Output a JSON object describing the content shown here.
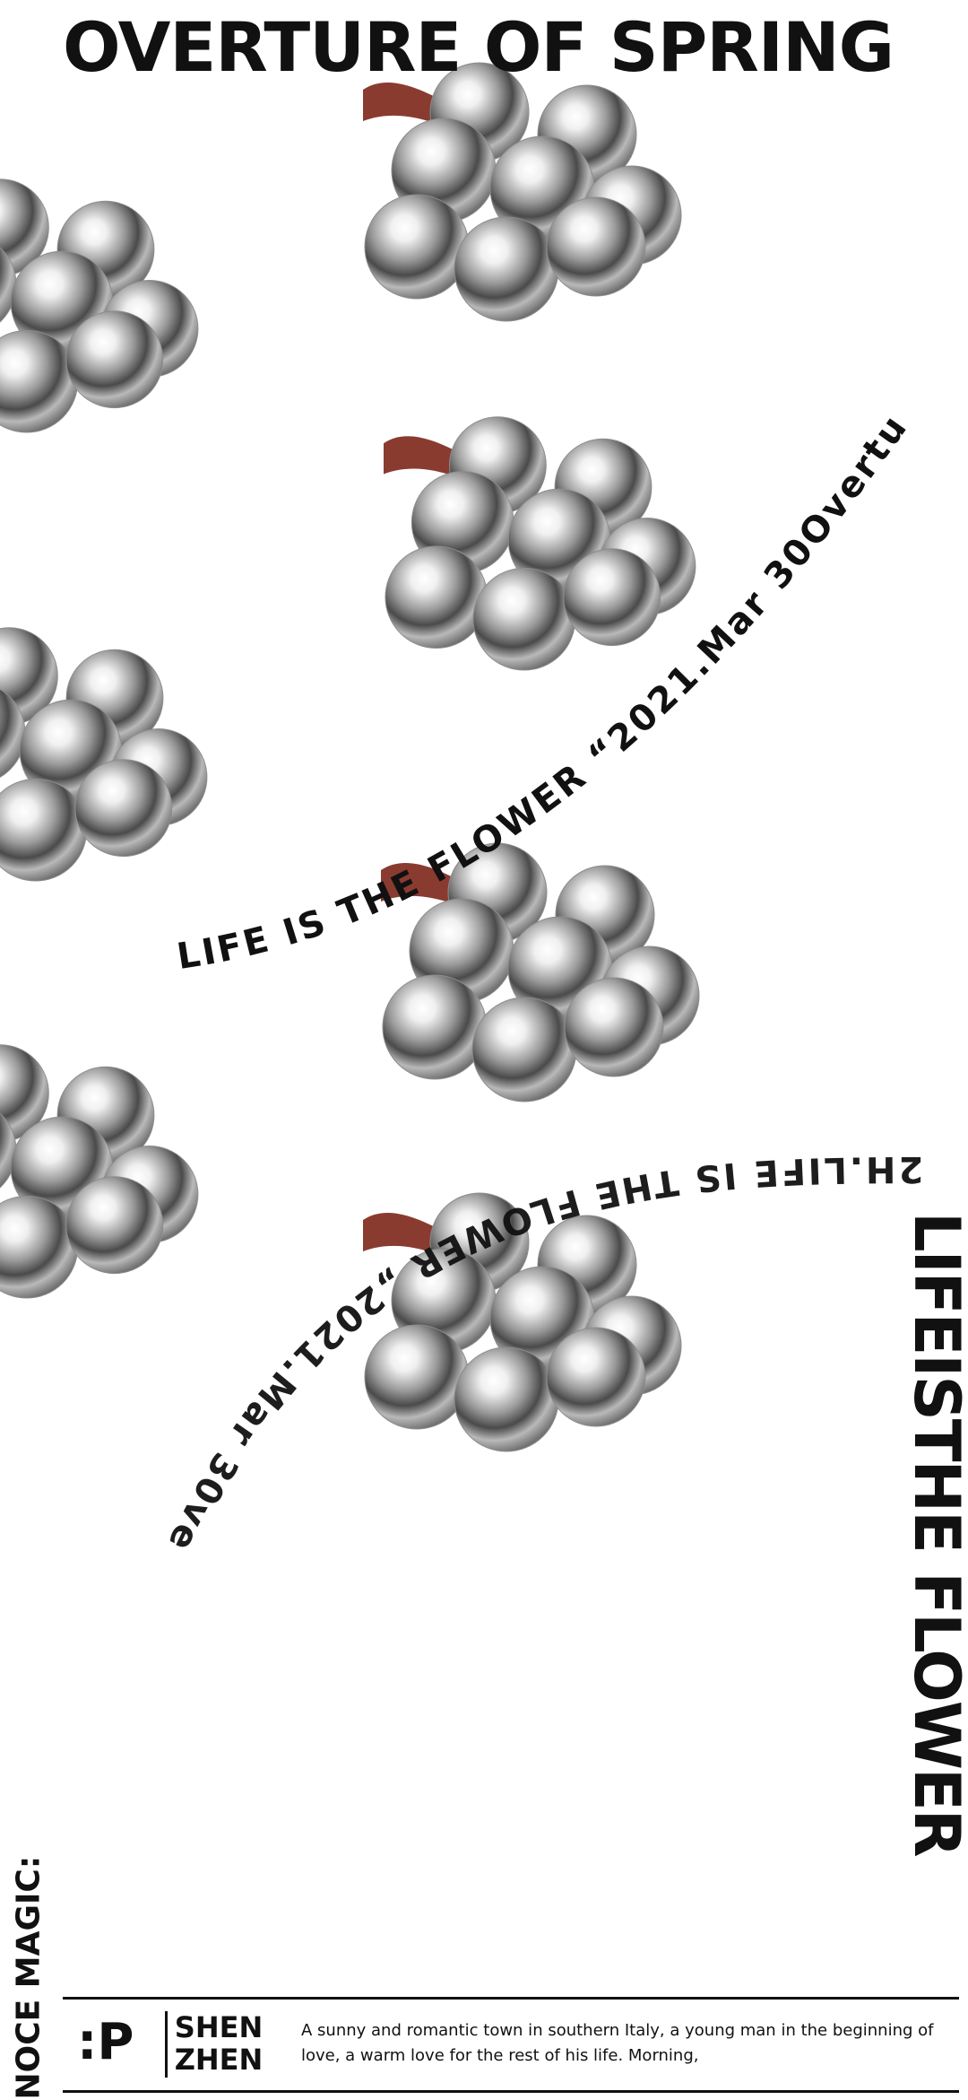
{
  "poster": {
    "title": "OVERTURE OF SPRING",
    "vertical_right": "LIFEISTHE FLOWER",
    "vertical_left": "NOCE MAGIC:",
    "curve_text_1": "LIFE IS THE FLOWER “2021.Mar 30Overtu",
    "curve_text_2": "2H.LIFE IS THE FLOWER „2021.Mar 30ve",
    "footer": {
      "logo": ":P",
      "city_line1": "SHEN",
      "city_line2": "ZHEN",
      "blurb": "A sunny and romantic town in southern Italy, a young man in the beginning of love, a warm love for the rest of his life. Morning,"
    }
  },
  "colors": {
    "background": "#ffffff",
    "text": "#111111",
    "stem": "#8a3b30",
    "chrome_dark": "#3b3b3b",
    "chrome_light": "#f4f4f4"
  },
  "graphics": {
    "motif": "chrome-grape-bunch",
    "count": 7
  }
}
